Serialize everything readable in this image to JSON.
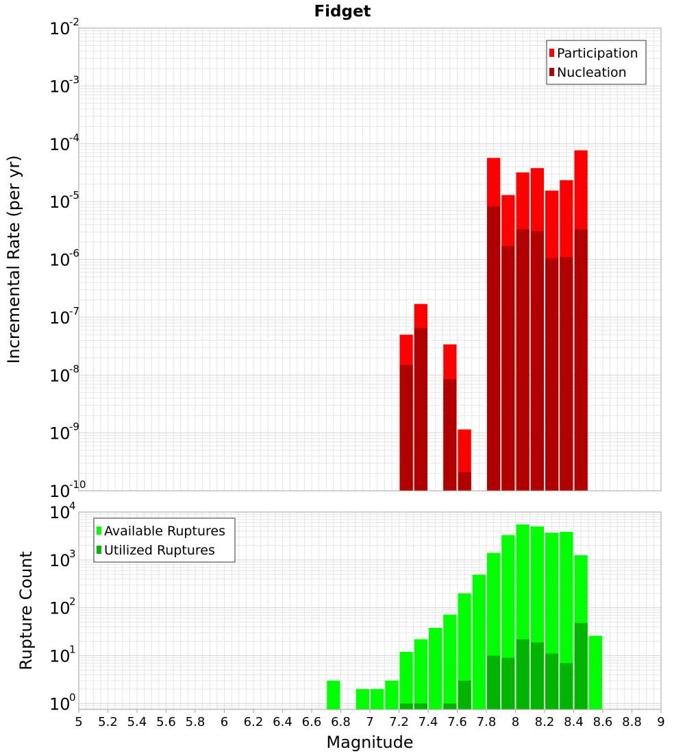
{
  "title": "Fidget",
  "colors": {
    "participation": "#ff0000",
    "nucleation": "#b00000",
    "available": "#00ff00",
    "utilized": "#00b400"
  },
  "chart_data": [
    {
      "type": "bar",
      "ylabel": "Incremental Rate (per yr)",
      "xlabel": "",
      "xlim": [
        5,
        9
      ],
      "ylim": [
        1e-10,
        0.01
      ],
      "yscale": "log",
      "yticks": [
        {
          "base": "10",
          "exp": "-10",
          "v": 1e-10
        },
        {
          "base": "10",
          "exp": "-9",
          "v": 1e-09
        },
        {
          "base": "10",
          "exp": "-8",
          "v": 1e-08
        },
        {
          "base": "10",
          "exp": "-7",
          "v": 1e-07
        },
        {
          "base": "10",
          "exp": "-6",
          "v": 1e-06
        },
        {
          "base": "10",
          "exp": "-5",
          "v": 1e-05
        },
        {
          "base": "10",
          "exp": "-4",
          "v": 0.0001
        },
        {
          "base": "10",
          "exp": "-3",
          "v": 0.001
        },
        {
          "base": "10",
          "exp": "-2",
          "v": 0.01
        }
      ],
      "legend_position": "top-right",
      "bin_width": 0.1,
      "series": [
        {
          "name": "Participation",
          "color": "#ff0000",
          "x": [
            7.25,
            7.35,
            7.55,
            7.65,
            7.85,
            7.95,
            8.05,
            8.15,
            8.25,
            8.35,
            8.45
          ],
          "values": [
            5e-08,
            1.7e-07,
            3.4e-08,
            1.15e-09,
            5.7e-05,
            1.3e-05,
            3.2e-05,
            3.8e-05,
            1.55e-05,
            2.35e-05,
            7.7e-05
          ]
        },
        {
          "name": "Nucleation",
          "color": "#b00000",
          "x": [
            7.25,
            7.35,
            7.55,
            7.65,
            7.85,
            7.95,
            8.05,
            8.15,
            8.25,
            8.35,
            8.45
          ],
          "values": [
            1.5e-08,
            6.5e-08,
            8.5e-09,
            2.1e-10,
            8.3e-06,
            1.7e-06,
            3.3e-06,
            3.1e-06,
            1.05e-06,
            1.1e-06,
            3.3e-06
          ]
        }
      ]
    },
    {
      "type": "bar",
      "ylabel": "Rupture Count",
      "xlabel": "Magnitude",
      "xlim": [
        5,
        9
      ],
      "ylim": [
        0.75,
        10000
      ],
      "yscale": "log",
      "yticks": [
        {
          "base": "10",
          "exp": "0",
          "v": 1
        },
        {
          "base": "10",
          "exp": "1",
          "v": 10
        },
        {
          "base": "10",
          "exp": "2",
          "v": 100
        },
        {
          "base": "10",
          "exp": "3",
          "v": 1000
        },
        {
          "base": "10",
          "exp": "4",
          "v": 10000
        }
      ],
      "xticks": [
        "5",
        "5.2",
        "5.4",
        "5.6",
        "5.8",
        "6",
        "6.2",
        "6.4",
        "6.6",
        "6.8",
        "7",
        "7.2",
        "7.4",
        "7.6",
        "7.8",
        "8",
        "8.2",
        "8.4",
        "8.6",
        "8.8",
        "9"
      ],
      "legend_position": "top-left",
      "bin_width": 0.1,
      "series": [
        {
          "name": "Available Ruptures",
          "color": "#00ff00",
          "x": [
            6.75,
            6.95,
            7.05,
            7.15,
            7.25,
            7.35,
            7.45,
            7.55,
            7.65,
            7.75,
            7.85,
            7.95,
            8.05,
            8.15,
            8.25,
            8.35,
            8.45,
            8.55
          ],
          "values": [
            3,
            2,
            2,
            3,
            12,
            22,
            38,
            72,
            200,
            490,
            1400,
            3300,
            5500,
            5000,
            3700,
            3850,
            1250,
            26
          ]
        },
        {
          "name": "Utilized Ruptures",
          "color": "#00b400",
          "x": [
            7.25,
            7.35,
            7.55,
            7.65,
            7.85,
            7.95,
            8.05,
            8.15,
            8.25,
            8.35,
            8.45
          ],
          "values": [
            1,
            1,
            1,
            3,
            10,
            9,
            22,
            19,
            11,
            7,
            48
          ]
        }
      ]
    }
  ]
}
